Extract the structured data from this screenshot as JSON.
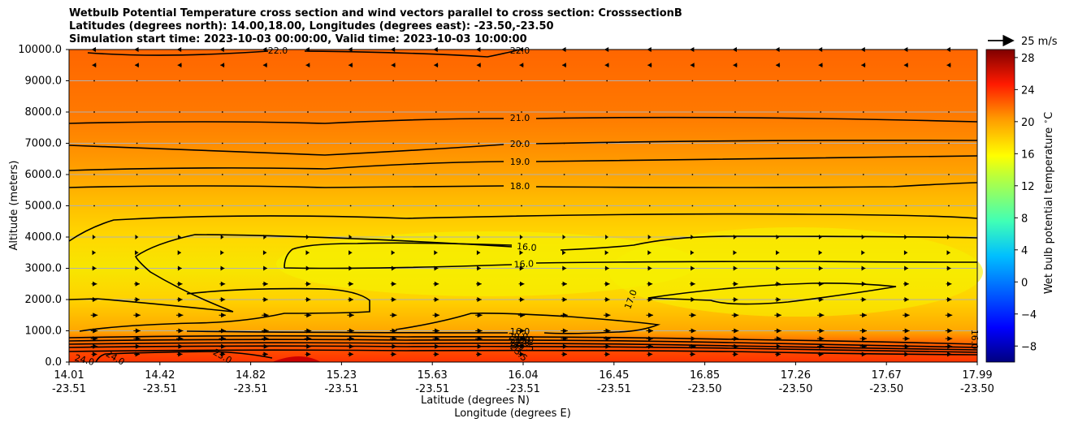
{
  "title_lines": [
    "Wetbulb Potential Temperature cross section and wind vectors parallel to cross section: CrosssectionB",
    "Latitudes (degrees north): 14.00,18.00, Longitudes (degrees east): -23.50,-23.50",
    "Simulation start time: 2023-10-03 00:00:00, Valid time: 2023-10-03 10:00:00"
  ],
  "chart_data": {
    "type": "heatmap",
    "subtype": "cross-section contour with wind vectors",
    "ylabel": "Altitude (meters)",
    "xlabel_line1": "Latitude (degrees N)",
    "xlabel_line2": "Longitude (degrees E)",
    "ylim": [
      0,
      10000
    ],
    "yticks": [
      "0.0",
      "1000.0",
      "2000.0",
      "3000.0",
      "4000.0",
      "5000.0",
      "6000.0",
      "7000.0",
      "8000.0",
      "9000.0",
      "10000.0"
    ],
    "xticks": [
      {
        "lat": "14.01",
        "lon": "-23.51"
      },
      {
        "lat": "14.42",
        "lon": "-23.51"
      },
      {
        "lat": "14.82",
        "lon": "-23.51"
      },
      {
        "lat": "15.23",
        "lon": "-23.51"
      },
      {
        "lat": "15.63",
        "lon": "-23.51"
      },
      {
        "lat": "16.04",
        "lon": "-23.51"
      },
      {
        "lat": "16.45",
        "lon": "-23.51"
      },
      {
        "lat": "16.85",
        "lon": "-23.50"
      },
      {
        "lat": "17.26",
        "lon": "-23.50"
      },
      {
        "lat": "17.67",
        "lon": "-23.50"
      },
      {
        "lat": "17.99",
        "lon": "-23.50"
      }
    ],
    "grid": "horizontal",
    "colorbar": {
      "label": "Wet bulb potential temperature $^\\circ$C",
      "range": [
        -10,
        29
      ],
      "ticks": [
        "−8",
        "−4",
        "0",
        "4",
        "8",
        "12",
        "16",
        "20",
        "24",
        "28"
      ],
      "colormap": "jet"
    },
    "wind_key": {
      "label": "25 m/s",
      "speed": 25
    },
    "contour_labels": [
      "22.0",
      "22.0",
      "21.0",
      "20.0",
      "19.0",
      "18.0",
      "16.0",
      "16.0",
      "17.0",
      "16.0",
      "24.0",
      "24.0",
      "23.0",
      "23.5",
      "22.5",
      "20.0",
      "21.0",
      "22.0",
      "19.0",
      "16.0"
    ],
    "wind_rows": [
      {
        "altitude_m": 250,
        "direction": "east",
        "speed_ms": 4
      },
      {
        "altitude_m": 500,
        "direction": "east",
        "speed_ms": 5
      },
      {
        "altitude_m": 750,
        "direction": "east",
        "speed_ms": 5
      },
      {
        "altitude_m": 1000,
        "direction": "east",
        "speed_ms": 5
      },
      {
        "altitude_m": 1500,
        "direction": "east",
        "speed_ms": 5
      },
      {
        "altitude_m": 2000,
        "direction": "east",
        "speed_ms": 4
      },
      {
        "altitude_m": 2500,
        "direction": "east",
        "speed_ms": 4
      },
      {
        "altitude_m": 3000,
        "direction": "east",
        "speed_ms": 3
      },
      {
        "altitude_m": 3500,
        "direction": "east",
        "speed_ms": 2
      },
      {
        "altitude_m": 4000,
        "direction": "east",
        "speed_ms": 1
      },
      {
        "altitude_m": 5000,
        "direction": "calm",
        "speed_ms": 0
      },
      {
        "altitude_m": 6000,
        "direction": "calm",
        "speed_ms": 0
      },
      {
        "altitude_m": 7000,
        "direction": "calm",
        "speed_ms": 0
      },
      {
        "altitude_m": 8000,
        "direction": "calm",
        "speed_ms": 0
      },
      {
        "altitude_m": 9000,
        "direction": "calm",
        "speed_ms": 0
      },
      {
        "altitude_m": 9500,
        "direction": "west",
        "speed_ms": 3
      },
      {
        "altitude_m": 10000,
        "direction": "west",
        "speed_ms": 4
      }
    ]
  }
}
